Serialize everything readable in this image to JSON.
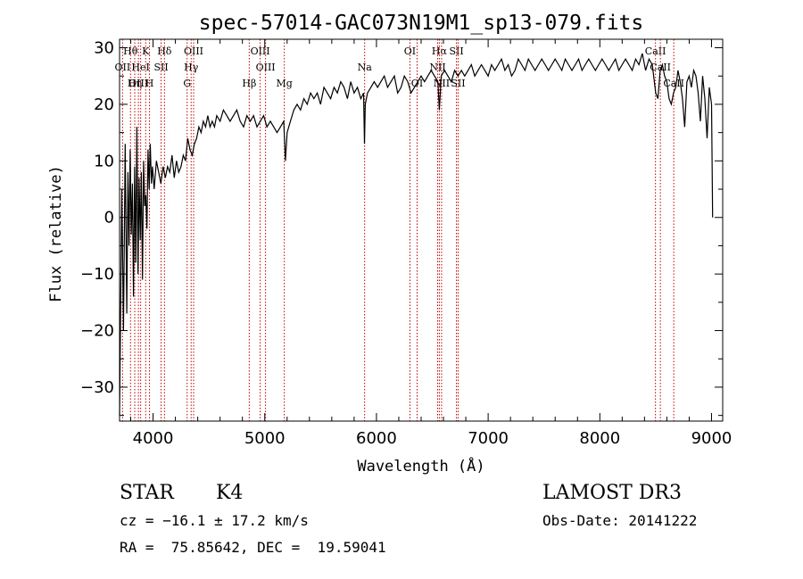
{
  "chart_data": {
    "type": "line",
    "title": "spec-57014-GAC073N19M1_sp13-079.fits",
    "xlabel": "Wavelength (Å)",
    "ylabel": "Flux (relative)",
    "xlim": [
      3700,
      9100
    ],
    "ylim": [
      -36,
      31.5
    ],
    "x_ticks": [
      4000,
      5000,
      6000,
      7000,
      8000,
      9000
    ],
    "y_ticks": [
      -30,
      -20,
      -10,
      0,
      10,
      20,
      30
    ],
    "line_color": "#000000",
    "marker_color": "#c00000",
    "spectral_lines": [
      {
        "label": "Hθ",
        "wave": 3798,
        "row": 0
      },
      {
        "label": "OII",
        "wave": 3727,
        "row": 1
      },
      {
        "label": "OIII",
        "wave": 3869,
        "row": 2
      },
      {
        "label": "Hη",
        "wave": 3836,
        "row": 2
      },
      {
        "label": "HeI",
        "wave": 3889,
        "row": 1
      },
      {
        "label": "K",
        "wave": 3934,
        "row": 0
      },
      {
        "label": "H",
        "wave": 3968,
        "row": 2
      },
      {
        "label": "SII",
        "wave": 4072,
        "row": 1
      },
      {
        "label": "Hδ",
        "wave": 4102,
        "row": 0
      },
      {
        "label": "OIII",
        "wave": 4363,
        "row": 0
      },
      {
        "label": "Hγ",
        "wave": 4341,
        "row": 1
      },
      {
        "label": "G",
        "wave": 4305,
        "row": 2
      },
      {
        "label": "Hβ",
        "wave": 4861,
        "row": 2
      },
      {
        "label": "OIII",
        "wave": 4959,
        "row": 0
      },
      {
        "label": "OIII",
        "wave": 5007,
        "row": 1
      },
      {
        "label": "Mg",
        "wave": 5175,
        "row": 2
      },
      {
        "label": "Na",
        "wave": 5894,
        "row": 1
      },
      {
        "label": "OI",
        "wave": 6300,
        "row": 0
      },
      {
        "label": "OI",
        "wave": 6364,
        "row": 2
      },
      {
        "label": "Hα",
        "wave": 6563,
        "row": 0
      },
      {
        "label": "NII",
        "wave": 6548,
        "row": 1
      },
      {
        "label": "NII",
        "wave": 6583,
        "row": 2
      },
      {
        "label": "SII",
        "wave": 6716,
        "row": 0
      },
      {
        "label": "SII",
        "wave": 6731,
        "row": 2
      },
      {
        "label": "CaII",
        "wave": 8498,
        "row": 0
      },
      {
        "label": "CaII",
        "wave": 8542,
        "row": 1
      },
      {
        "label": "CaII",
        "wave": 8662,
        "row": 2
      }
    ],
    "series": [
      {
        "name": "flux",
        "x": [
          3700,
          3720,
          3735,
          3750,
          3765,
          3775,
          3785,
          3795,
          3805,
          3815,
          3825,
          3835,
          3845,
          3855,
          3865,
          3875,
          3885,
          3895,
          3905,
          3915,
          3925,
          3935,
          3945,
          3955,
          3965,
          3975,
          3985,
          3995,
          4010,
          4030,
          4050,
          4070,
          4090,
          4110,
          4130,
          4150,
          4170,
          4190,
          4210,
          4230,
          4250,
          4270,
          4290,
          4310,
          4330,
          4350,
          4370,
          4390,
          4410,
          4430,
          4450,
          4470,
          4490,
          4510,
          4530,
          4550,
          4570,
          4600,
          4630,
          4660,
          4690,
          4720,
          4750,
          4780,
          4810,
          4840,
          4870,
          4900,
          4930,
          4960,
          4990,
          5020,
          5050,
          5080,
          5110,
          5140,
          5170,
          5185,
          5200,
          5230,
          5260,
          5290,
          5320,
          5350,
          5380,
          5410,
          5440,
          5470,
          5500,
          5530,
          5560,
          5590,
          5620,
          5650,
          5680,
          5710,
          5740,
          5770,
          5800,
          5830,
          5860,
          5885,
          5893,
          5900,
          5920,
          5950,
          5980,
          6010,
          6040,
          6070,
          6100,
          6130,
          6160,
          6190,
          6220,
          6250,
          6280,
          6310,
          6340,
          6370,
          6400,
          6430,
          6460,
          6490,
          6520,
          6550,
          6563,
          6580,
          6610,
          6640,
          6670,
          6700,
          6730,
          6760,
          6790,
          6820,
          6850,
          6880,
          6910,
          6940,
          6970,
          7000,
          7030,
          7060,
          7090,
          7120,
          7150,
          7180,
          7210,
          7240,
          7270,
          7300,
          7330,
          7360,
          7390,
          7420,
          7450,
          7480,
          7510,
          7540,
          7570,
          7600,
          7630,
          7660,
          7690,
          7720,
          7750,
          7780,
          7810,
          7840,
          7870,
          7900,
          7930,
          7960,
          7990,
          8020,
          8050,
          8080,
          8110,
          8140,
          8170,
          8200,
          8230,
          8260,
          8290,
          8320,
          8350,
          8380,
          8410,
          8440,
          8470,
          8500,
          8520,
          8540,
          8560,
          8580,
          8600,
          8620,
          8640,
          8660,
          8680,
          8700,
          8720,
          8740,
          8760,
          8780,
          8800,
          8820,
          8840,
          8860,
          8880,
          8900,
          8920,
          8940,
          8960,
          8980,
          9000,
          9010
        ],
        "y": [
          -35,
          5,
          -20,
          13,
          -17,
          8,
          -5,
          12,
          -3,
          6,
          -14,
          9,
          -8,
          16,
          -10,
          7,
          -4,
          8,
          -11,
          10,
          2,
          4,
          -2,
          12,
          5,
          13,
          6,
          9,
          5,
          10,
          8,
          6,
          9,
          7,
          9,
          8,
          11,
          7,
          10,
          8,
          9,
          11,
          10,
          14,
          12,
          11,
          13,
          14,
          16,
          15,
          17,
          16,
          18,
          16,
          17,
          16,
          18,
          17,
          19,
          18,
          17,
          18,
          19,
          17,
          16,
          18,
          17,
          18,
          16,
          17,
          18,
          16,
          17,
          16,
          15,
          16,
          17,
          10,
          15,
          17,
          19,
          20,
          19,
          21,
          20,
          22,
          21,
          22,
          20,
          23,
          22,
          21,
          23,
          22,
          24,
          23,
          21,
          24,
          22,
          23,
          21,
          22,
          13,
          20,
          22,
          23,
          24,
          23,
          24,
          25,
          23,
          24,
          25,
          22,
          23,
          25,
          24,
          22,
          23,
          24,
          25,
          24,
          25,
          26,
          25,
          24,
          19,
          25,
          26,
          25,
          24,
          26,
          25,
          26,
          25,
          26,
          27,
          25,
          26,
          27,
          26,
          25,
          27,
          26,
          27,
          28,
          26,
          27,
          25,
          26,
          28,
          27,
          26,
          28,
          27,
          26,
          27,
          28,
          27,
          26,
          27,
          28,
          27,
          26,
          28,
          27,
          26,
          27,
          28,
          26,
          27,
          28,
          27,
          26,
          27,
          28,
          27,
          26,
          27,
          28,
          26,
          27,
          28,
          27,
          26,
          28,
          27,
          29,
          26,
          28,
          27,
          22,
          21,
          26,
          27,
          25,
          24,
          21,
          20,
          22,
          23,
          26,
          24,
          21,
          16,
          24,
          25,
          23,
          26,
          25,
          22,
          17,
          25,
          21,
          14,
          23,
          20,
          0
        ]
      }
    ]
  },
  "info": {
    "object_class": "STAR",
    "subclass": "K4",
    "survey": "LAMOST DR3",
    "redshift_text": "cz = −16.1 ± 17.2 km/s",
    "obs_date_text": "Obs-Date: 20141222",
    "coords_text": "RA =  75.85642, DEC =  19.59041"
  }
}
